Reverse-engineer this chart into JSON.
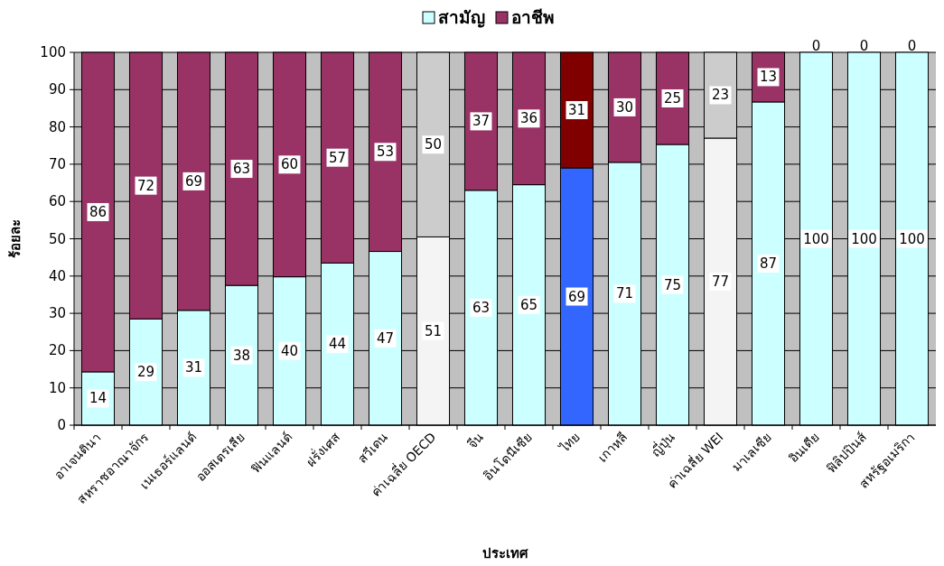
{
  "chart_data": {
    "type": "bar",
    "stacked": true,
    "xlabel": "ประเทศ",
    "ylabel": "ร้อยละ",
    "legend": "top",
    "grid": "y",
    "ylim": [
      0,
      100
    ],
    "yticks": [
      0,
      10,
      20,
      30,
      40,
      50,
      60,
      70,
      80,
      90,
      100
    ],
    "categories": [
      "อาเจนตินา",
      "สหราชอาณาจักร",
      "เนเธอร์แลนด์",
      "ออสเตรเลีย",
      "ฟินแลนด์",
      "ฝรั่งเศส",
      "สวีเดน",
      "ค่าเฉลี่ย OECD",
      "จีน",
      "อินโดนีเซีย",
      "ไทย",
      "เกาหลี",
      "ญี่ปุ่น",
      "ค่าเฉลี่ย WEI",
      "มาเลเซีย",
      "อินเดีย",
      "ฟิลิปปินส์",
      "สหรัฐอเมริกา"
    ],
    "series": [
      {
        "name": "สามัญ",
        "color": "#ccffff",
        "colors": [
          "#ccffff",
          "#ccffff",
          "#ccffff",
          "#ccffff",
          "#ccffff",
          "#ccffff",
          "#ccffff",
          "#f4f4f4",
          "#ccffff",
          "#ccffff",
          "#3366ff",
          "#ccffff",
          "#ccffff",
          "#f4f4f4",
          "#ccffff",
          "#ccffff",
          "#ccffff",
          "#ccffff"
        ],
        "values": [
          14.3,
          28.5,
          30.8,
          37.5,
          39.8,
          43.5,
          46.6,
          50.5,
          63,
          64.5,
          69,
          70.5,
          75.3,
          77,
          86.7,
          100,
          100,
          100
        ],
        "value_labels": [
          "14",
          "29",
          "31",
          "38",
          "40",
          "44",
          "47",
          "51",
          "63",
          "65",
          "69",
          "71",
          "75",
          "77",
          "87",
          "100",
          "100",
          "100"
        ]
      },
      {
        "name": "อาชีพ",
        "color": "#993366",
        "colors": [
          "#993366",
          "#993366",
          "#993366",
          "#993366",
          "#993366",
          "#993366",
          "#993366",
          "#cccccc",
          "#993366",
          "#993366",
          "#800000",
          "#993366",
          "#993366",
          "#cccccc",
          "#993366",
          "#993366",
          "#993366",
          "#993366"
        ],
        "values": [
          85.7,
          71.5,
          69.2,
          62.5,
          60.2,
          56.5,
          53.4,
          49.5,
          37,
          35.5,
          31,
          29.5,
          24.7,
          23,
          13.3,
          0,
          0,
          0
        ],
        "value_labels": [
          "86",
          "72",
          "69",
          "63",
          "60",
          "57",
          "53",
          "50",
          "37",
          "36",
          "31",
          "30",
          "25",
          "23",
          "13",
          "0",
          "0",
          "0"
        ]
      }
    ]
  }
}
